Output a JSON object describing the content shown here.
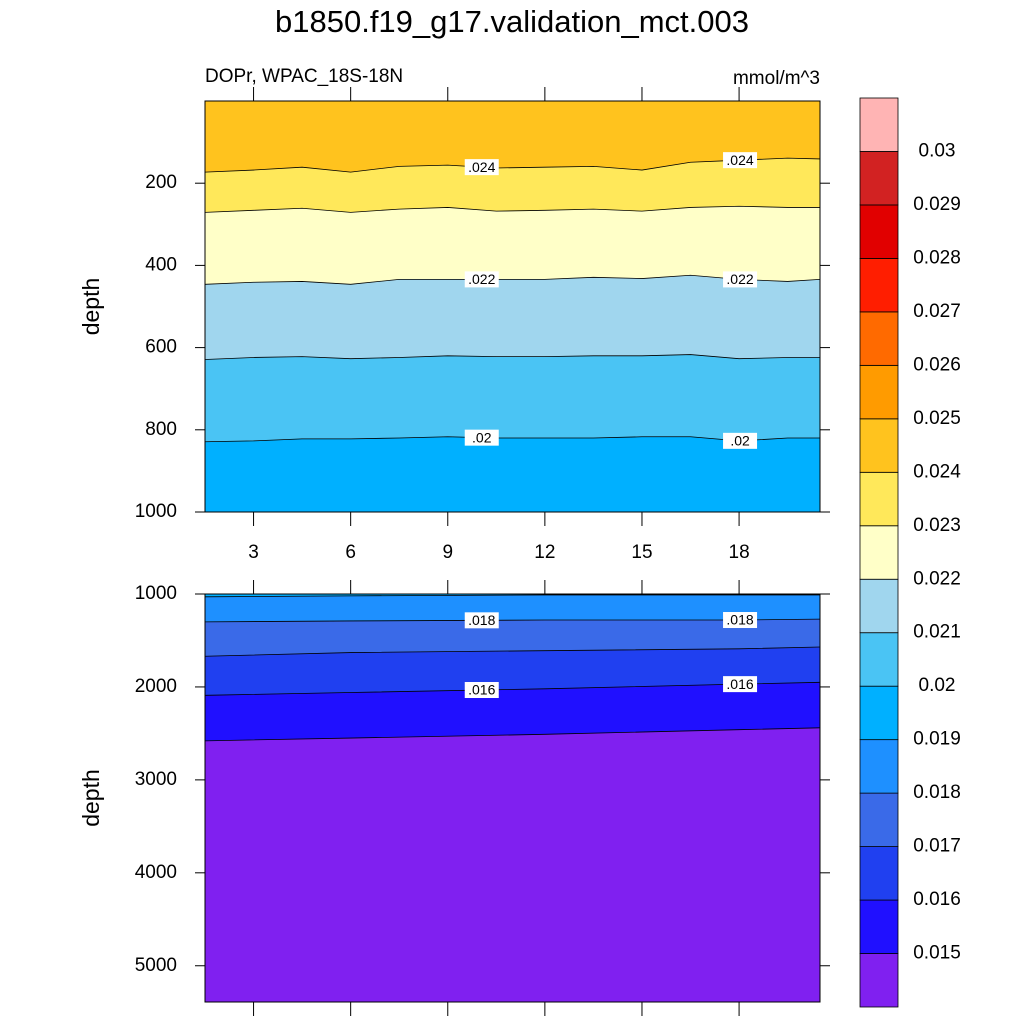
{
  "chart_data": {
    "type": "contour",
    "title": "b1850.f19_g17.validation_mct.003",
    "subtitle": "DOPr, WPAC_18S-18N",
    "units": "mmol/m^3",
    "colorbar": {
      "levels": [
        0.015,
        0.016,
        0.017,
        0.018,
        0.019,
        0.02,
        0.021,
        0.022,
        0.023,
        0.024,
        0.025,
        0.026,
        0.027,
        0.028,
        0.029,
        0.03
      ],
      "colors": [
        "#8020f0",
        "#2010ff",
        "#2040f0",
        "#3a6ae8",
        "#1e90ff",
        "#00b0ff",
        "#4ac4f4",
        "#a0d6ee",
        "#ffffc8",
        "#ffe85a",
        "#ffc31e",
        "#ff9b00",
        "#ff6a00",
        "#ff1e00",
        "#e10000",
        "#d22222",
        "#ffb4b4"
      ]
    },
    "panels": [
      {
        "ylabel": "depth",
        "xlim": [
          1.5,
          20.5
        ],
        "xticks": [
          3,
          6,
          9,
          12,
          15,
          18
        ],
        "ylim": [
          1000,
          0
        ],
        "yticks": [
          200,
          400,
          600,
          800,
          1000
        ],
        "x": [
          1.5,
          3,
          4.5,
          6,
          7.5,
          9,
          10.5,
          12,
          13.5,
          15,
          16.5,
          18,
          19.5,
          20.5
        ],
        "contours": [
          {
            "level": 0.024,
            "label": ".024",
            "depths": [
              173,
              168,
              161,
              173,
              159,
              156,
              163,
              161,
              159,
              168,
              149,
              144,
              139,
              141
            ]
          },
          {
            "level": 0.023,
            "depths": [
              271,
              266,
              261,
              271,
              263,
              259,
              268,
              266,
              263,
              268,
              259,
              256,
              259,
              259
            ]
          },
          {
            "level": 0.022,
            "label": ".022",
            "depths": [
              446,
              441,
              439,
              446,
              434,
              434,
              434,
              434,
              429,
              432,
              424,
              434,
              439,
              434
            ]
          },
          {
            "level": 0.021,
            "depths": [
              629,
              624,
              622,
              627,
              624,
              620,
              622,
              622,
              620,
              620,
              617,
              627,
              624,
              624
            ]
          },
          {
            "level": 0.02,
            "label": ".02",
            "depths": [
              829,
              827,
              822,
              822,
              820,
              817,
              820,
              820,
              820,
              817,
              817,
              827,
              820,
              820
            ]
          }
        ]
      },
      {
        "ylabel": "depth",
        "xlim": [
          1.5,
          20.5
        ],
        "ylim": [
          5390,
          1000
        ],
        "yticks": [
          1000,
          2000,
          3000,
          4000,
          5000
        ],
        "x": [
          1.5,
          6,
          12,
          18,
          20.5
        ],
        "contours": [
          {
            "level": 0.019,
            "depths": [
              1030,
              1020,
              1010,
              1010,
              1010
            ]
          },
          {
            "level": 0.018,
            "label": ".018",
            "depths": [
              1300,
              1290,
              1280,
              1280,
              1270
            ]
          },
          {
            "level": 0.017,
            "depths": [
              1670,
              1630,
              1610,
              1590,
              1570
            ]
          },
          {
            "level": 0.016,
            "label": ".016",
            "depths": [
              2090,
              2060,
              2020,
              1970,
              1950
            ]
          },
          {
            "level": 0.015,
            "depths": [
              2580,
              2550,
              2510,
              2460,
              2440
            ]
          }
        ]
      }
    ]
  }
}
